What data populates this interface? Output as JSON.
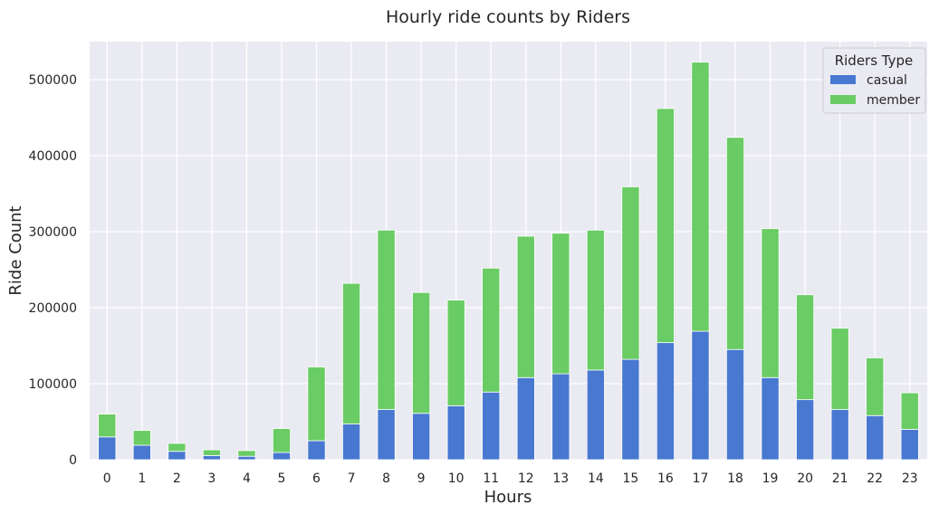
{
  "chart_data": {
    "type": "bar",
    "stacked": true,
    "title": "Hourly ride counts by Riders",
    "xlabel": "Hours",
    "ylabel": "Ride Count",
    "ylim": [
      0,
      550000
    ],
    "yticks": [
      0,
      100000,
      200000,
      300000,
      400000,
      500000
    ],
    "grid": true,
    "legend": {
      "title": "Riders Type",
      "placement": "top-right"
    },
    "categories": [
      "0",
      "1",
      "2",
      "3",
      "4",
      "5",
      "6",
      "7",
      "8",
      "9",
      "10",
      "11",
      "12",
      "13",
      "14",
      "15",
      "16",
      "17",
      "18",
      "19",
      "20",
      "21",
      "22",
      "23"
    ],
    "series": [
      {
        "name": "casual",
        "color": "#4878d0",
        "values": [
          30000,
          19000,
          11000,
          5500,
          4500,
          9500,
          25000,
          47000,
          66000,
          61000,
          71000,
          89000,
          108000,
          113000,
          118000,
          132000,
          154000,
          169000,
          145000,
          108000,
          79000,
          66000,
          58000,
          40000
        ]
      },
      {
        "name": "member",
        "color": "#6acc64",
        "values": [
          30000,
          19500,
          10500,
          7500,
          7500,
          31500,
          97000,
          185000,
          236000,
          159000,
          139000,
          163000,
          186000,
          185000,
          184000,
          227000,
          308000,
          354000,
          279000,
          196000,
          138000,
          107000,
          76000,
          48000
        ]
      }
    ]
  }
}
